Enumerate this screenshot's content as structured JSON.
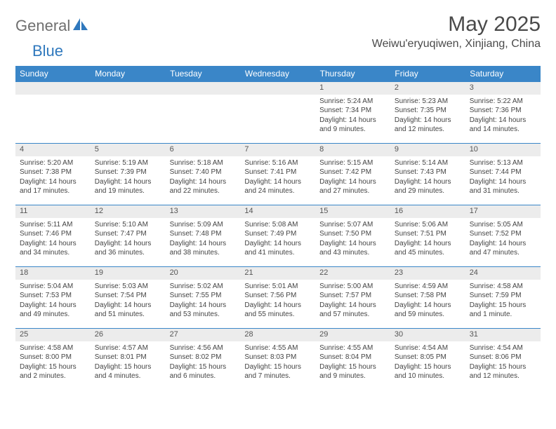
{
  "brand": {
    "part1": "General",
    "part2": "Blue"
  },
  "title": "May 2025",
  "location": "Weiwu'eryuqiwen, Xinjiang, China",
  "colors": {
    "header_bg": "#3a86c8",
    "header_text": "#ffffff",
    "daynum_bg": "#ececec",
    "border": "#3a86c8",
    "brand_gray": "#6f6f6f",
    "brand_blue": "#2f78bd",
    "body_text": "#444444"
  },
  "weekdays": [
    "Sunday",
    "Monday",
    "Tuesday",
    "Wednesday",
    "Thursday",
    "Friday",
    "Saturday"
  ],
  "fonts": {
    "title_pt": 30,
    "location_pt": 16,
    "weekday_pt": 12,
    "daynum_pt": 11,
    "detail_pt": 10
  },
  "weeks": [
    [
      null,
      null,
      null,
      null,
      {
        "n": "1",
        "sr": "Sunrise: 5:24 AM",
        "ss": "Sunset: 7:34 PM",
        "d1": "Daylight: 14 hours",
        "d2": "and 9 minutes."
      },
      {
        "n": "2",
        "sr": "Sunrise: 5:23 AM",
        "ss": "Sunset: 7:35 PM",
        "d1": "Daylight: 14 hours",
        "d2": "and 12 minutes."
      },
      {
        "n": "3",
        "sr": "Sunrise: 5:22 AM",
        "ss": "Sunset: 7:36 PM",
        "d1": "Daylight: 14 hours",
        "d2": "and 14 minutes."
      }
    ],
    [
      {
        "n": "4",
        "sr": "Sunrise: 5:20 AM",
        "ss": "Sunset: 7:38 PM",
        "d1": "Daylight: 14 hours",
        "d2": "and 17 minutes."
      },
      {
        "n": "5",
        "sr": "Sunrise: 5:19 AM",
        "ss": "Sunset: 7:39 PM",
        "d1": "Daylight: 14 hours",
        "d2": "and 19 minutes."
      },
      {
        "n": "6",
        "sr": "Sunrise: 5:18 AM",
        "ss": "Sunset: 7:40 PM",
        "d1": "Daylight: 14 hours",
        "d2": "and 22 minutes."
      },
      {
        "n": "7",
        "sr": "Sunrise: 5:16 AM",
        "ss": "Sunset: 7:41 PM",
        "d1": "Daylight: 14 hours",
        "d2": "and 24 minutes."
      },
      {
        "n": "8",
        "sr": "Sunrise: 5:15 AM",
        "ss": "Sunset: 7:42 PM",
        "d1": "Daylight: 14 hours",
        "d2": "and 27 minutes."
      },
      {
        "n": "9",
        "sr": "Sunrise: 5:14 AM",
        "ss": "Sunset: 7:43 PM",
        "d1": "Daylight: 14 hours",
        "d2": "and 29 minutes."
      },
      {
        "n": "10",
        "sr": "Sunrise: 5:13 AM",
        "ss": "Sunset: 7:44 PM",
        "d1": "Daylight: 14 hours",
        "d2": "and 31 minutes."
      }
    ],
    [
      {
        "n": "11",
        "sr": "Sunrise: 5:11 AM",
        "ss": "Sunset: 7:46 PM",
        "d1": "Daylight: 14 hours",
        "d2": "and 34 minutes."
      },
      {
        "n": "12",
        "sr": "Sunrise: 5:10 AM",
        "ss": "Sunset: 7:47 PM",
        "d1": "Daylight: 14 hours",
        "d2": "and 36 minutes."
      },
      {
        "n": "13",
        "sr": "Sunrise: 5:09 AM",
        "ss": "Sunset: 7:48 PM",
        "d1": "Daylight: 14 hours",
        "d2": "and 38 minutes."
      },
      {
        "n": "14",
        "sr": "Sunrise: 5:08 AM",
        "ss": "Sunset: 7:49 PM",
        "d1": "Daylight: 14 hours",
        "d2": "and 41 minutes."
      },
      {
        "n": "15",
        "sr": "Sunrise: 5:07 AM",
        "ss": "Sunset: 7:50 PM",
        "d1": "Daylight: 14 hours",
        "d2": "and 43 minutes."
      },
      {
        "n": "16",
        "sr": "Sunrise: 5:06 AM",
        "ss": "Sunset: 7:51 PM",
        "d1": "Daylight: 14 hours",
        "d2": "and 45 minutes."
      },
      {
        "n": "17",
        "sr": "Sunrise: 5:05 AM",
        "ss": "Sunset: 7:52 PM",
        "d1": "Daylight: 14 hours",
        "d2": "and 47 minutes."
      }
    ],
    [
      {
        "n": "18",
        "sr": "Sunrise: 5:04 AM",
        "ss": "Sunset: 7:53 PM",
        "d1": "Daylight: 14 hours",
        "d2": "and 49 minutes."
      },
      {
        "n": "19",
        "sr": "Sunrise: 5:03 AM",
        "ss": "Sunset: 7:54 PM",
        "d1": "Daylight: 14 hours",
        "d2": "and 51 minutes."
      },
      {
        "n": "20",
        "sr": "Sunrise: 5:02 AM",
        "ss": "Sunset: 7:55 PM",
        "d1": "Daylight: 14 hours",
        "d2": "and 53 minutes."
      },
      {
        "n": "21",
        "sr": "Sunrise: 5:01 AM",
        "ss": "Sunset: 7:56 PM",
        "d1": "Daylight: 14 hours",
        "d2": "and 55 minutes."
      },
      {
        "n": "22",
        "sr": "Sunrise: 5:00 AM",
        "ss": "Sunset: 7:57 PM",
        "d1": "Daylight: 14 hours",
        "d2": "and 57 minutes."
      },
      {
        "n": "23",
        "sr": "Sunrise: 4:59 AM",
        "ss": "Sunset: 7:58 PM",
        "d1": "Daylight: 14 hours",
        "d2": "and 59 minutes."
      },
      {
        "n": "24",
        "sr": "Sunrise: 4:58 AM",
        "ss": "Sunset: 7:59 PM",
        "d1": "Daylight: 15 hours",
        "d2": "and 1 minute."
      }
    ],
    [
      {
        "n": "25",
        "sr": "Sunrise: 4:58 AM",
        "ss": "Sunset: 8:00 PM",
        "d1": "Daylight: 15 hours",
        "d2": "and 2 minutes."
      },
      {
        "n": "26",
        "sr": "Sunrise: 4:57 AM",
        "ss": "Sunset: 8:01 PM",
        "d1": "Daylight: 15 hours",
        "d2": "and 4 minutes."
      },
      {
        "n": "27",
        "sr": "Sunrise: 4:56 AM",
        "ss": "Sunset: 8:02 PM",
        "d1": "Daylight: 15 hours",
        "d2": "and 6 minutes."
      },
      {
        "n": "28",
        "sr": "Sunrise: 4:55 AM",
        "ss": "Sunset: 8:03 PM",
        "d1": "Daylight: 15 hours",
        "d2": "and 7 minutes."
      },
      {
        "n": "29",
        "sr": "Sunrise: 4:55 AM",
        "ss": "Sunset: 8:04 PM",
        "d1": "Daylight: 15 hours",
        "d2": "and 9 minutes."
      },
      {
        "n": "30",
        "sr": "Sunrise: 4:54 AM",
        "ss": "Sunset: 8:05 PM",
        "d1": "Daylight: 15 hours",
        "d2": "and 10 minutes."
      },
      {
        "n": "31",
        "sr": "Sunrise: 4:54 AM",
        "ss": "Sunset: 8:06 PM",
        "d1": "Daylight: 15 hours",
        "d2": "and 12 minutes."
      }
    ]
  ]
}
